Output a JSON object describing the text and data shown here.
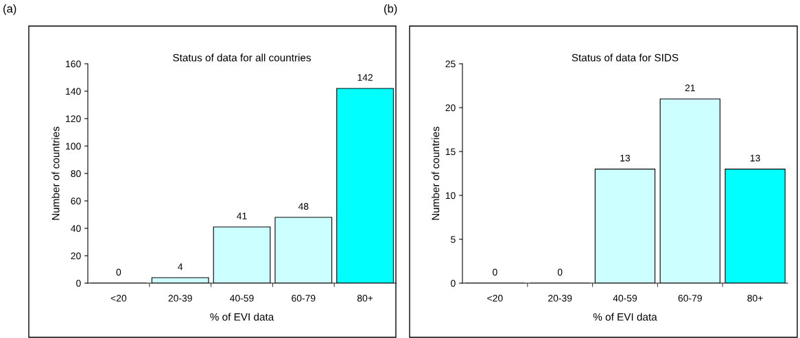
{
  "chart_data": [
    {
      "type": "bar",
      "title": "Status of data for all countries",
      "xlabel": "% of EVI data",
      "ylabel": "Number of countries",
      "categories": [
        "<20",
        "20-39",
        "40-59",
        "60-79",
        "80+"
      ],
      "values": [
        0,
        4,
        41,
        48,
        142
      ],
      "colors": [
        "#ccffff",
        "#ccffff",
        "#ccffff",
        "#ccffff",
        "#00ffff"
      ],
      "ylim": [
        0,
        160
      ],
      "yticks": [
        0,
        20,
        40,
        60,
        80,
        100,
        120,
        140,
        160
      ],
      "data_labels": true,
      "grid": false,
      "legend": false,
      "annotations": [
        "(a)"
      ]
    },
    {
      "type": "bar",
      "title": "Status of data for SIDS",
      "xlabel": "% of EVI data",
      "ylabel": "Number of countries",
      "categories": [
        "<20",
        "20-39",
        "40-59",
        "60-79",
        "80+"
      ],
      "values": [
        0,
        0,
        13,
        21,
        13
      ],
      "colors": [
        "#ccffff",
        "#ccffff",
        "#ccffff",
        "#ccffff",
        "#00ffff"
      ],
      "ylim": [
        0,
        25
      ],
      "yticks": [
        0,
        5,
        10,
        15,
        20,
        25
      ],
      "data_labels": true,
      "grid": false,
      "legend": false,
      "annotations": [
        "(b)"
      ]
    }
  ]
}
